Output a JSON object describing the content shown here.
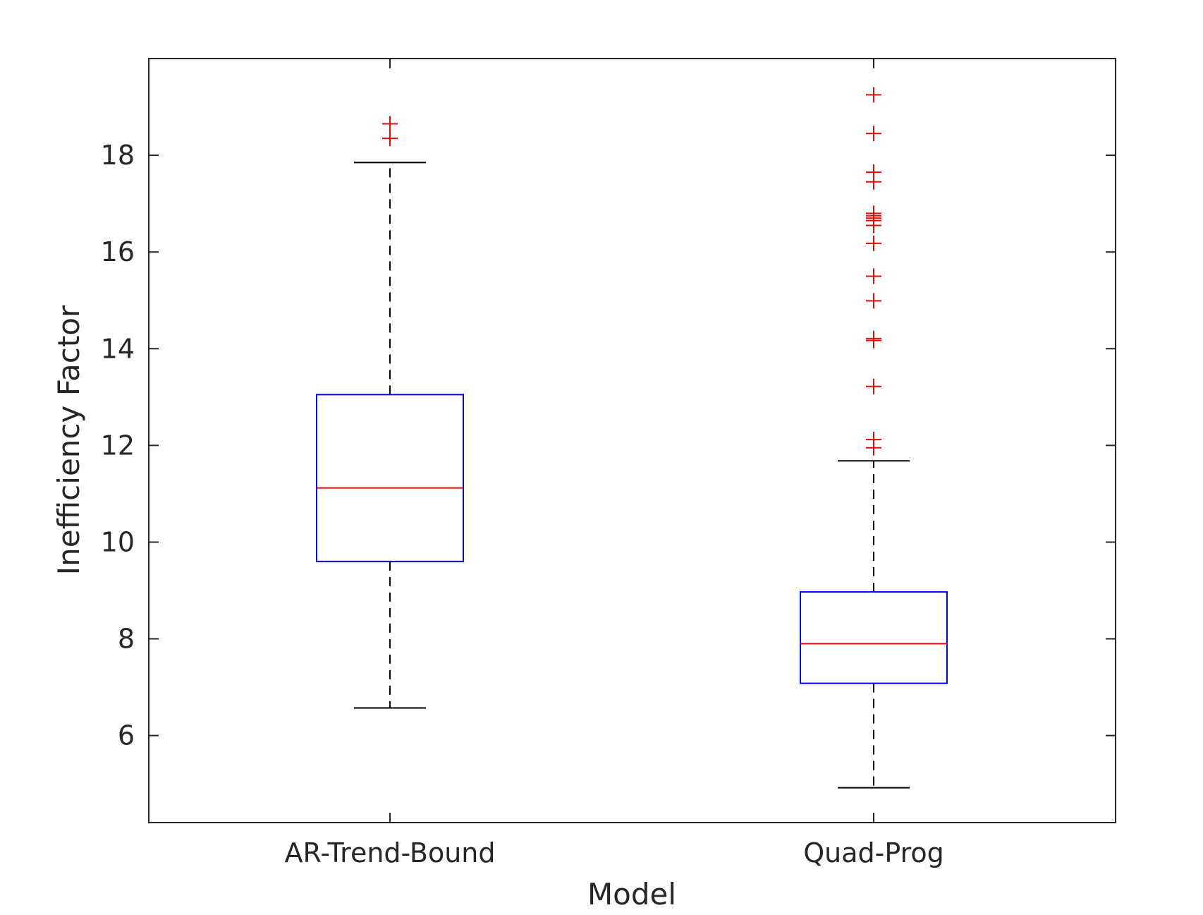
{
  "chart_data": {
    "type": "box",
    "xlabel": "Model",
    "ylabel": "Inefficiency Factor",
    "ylim": [
      4.2,
      20
    ],
    "yticks": [
      6,
      8,
      10,
      12,
      14,
      16,
      18
    ],
    "categories": [
      "AR-Trend-Bound",
      "Quad-Prog"
    ],
    "grid": false,
    "colors": {
      "box": "#0000ff",
      "median": "#ff0000",
      "whisker": "#000000",
      "outlier": "#ff0000",
      "axis": "#262626"
    },
    "boxes": [
      {
        "category": "AR-Trend-Bound",
        "whisker_low": 6.57,
        "q1": 9.6,
        "median": 11.12,
        "q3": 13.05,
        "whisker_high": 17.85,
        "outliers": [
          18.35,
          18.65
        ]
      },
      {
        "category": "Quad-Prog",
        "whisker_low": 4.92,
        "q1": 7.08,
        "median": 7.9,
        "q3": 8.97,
        "whisker_high": 11.68,
        "outliers": [
          11.95,
          12.12,
          13.22,
          14.17,
          14.21,
          14.99,
          15.5,
          16.18,
          16.55,
          16.65,
          16.7,
          16.75,
          16.8,
          17.45,
          17.65,
          18.45,
          19.25
        ]
      }
    ]
  }
}
